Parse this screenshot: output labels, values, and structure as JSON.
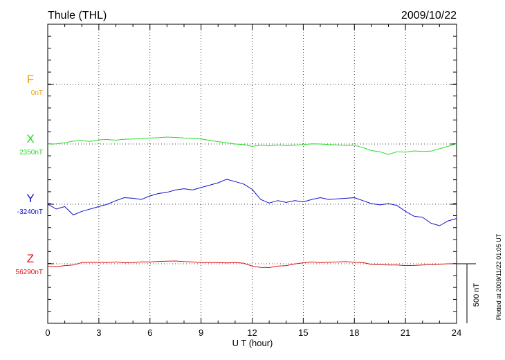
{
  "header": {
    "station": "Thule (THL)",
    "date": "2009/10/22"
  },
  "side_note": "Plotted at 2009/11/22 01:05 UT",
  "scale_bar": {
    "label": "500 nT",
    "value_nT": 500
  },
  "colors": {
    "F": "#f0a000",
    "X": "#22dd22",
    "Y": "#1010cc",
    "Z": "#dd1111",
    "axis": "#000000",
    "grid": "#000000"
  },
  "chart_data": {
    "type": "line",
    "xlabel": "U T (hour)",
    "xlim": [
      0,
      24
    ],
    "x_ticks": [
      "0",
      "3",
      "6",
      "9",
      "12",
      "15",
      "18",
      "21",
      "24"
    ],
    "units": "nT",
    "series": [
      {
        "name": "F",
        "baseline_label": "0nT",
        "baseline_nT": 0,
        "x": [],
        "values": []
      },
      {
        "name": "X",
        "baseline_label": "2350nT",
        "baseline_nT": 2350,
        "x": [
          0,
          0.5,
          1,
          1.5,
          2,
          2.5,
          3,
          3.5,
          4,
          4.5,
          5,
          5.5,
          6,
          6.5,
          7,
          7.5,
          8,
          8.5,
          9,
          9.5,
          10,
          10.5,
          11,
          11.5,
          12,
          12.5,
          13,
          13.5,
          14,
          14.5,
          15,
          15.5,
          16,
          16.5,
          17,
          17.5,
          18,
          18.5,
          19,
          19.5,
          20,
          20.5,
          21,
          21.5,
          22,
          22.5,
          23,
          23.5,
          24
        ],
        "values": [
          2350,
          2352,
          2360,
          2375,
          2378,
          2372,
          2385,
          2388,
          2382,
          2390,
          2392,
          2395,
          2400,
          2403,
          2408,
          2405,
          2400,
          2398,
          2392,
          2380,
          2370,
          2360,
          2350,
          2345,
          2330,
          2340,
          2335,
          2342,
          2336,
          2340,
          2345,
          2352,
          2350,
          2345,
          2342,
          2338,
          2340,
          2320,
          2295,
          2285,
          2262,
          2285,
          2282,
          2292,
          2288,
          2290,
          2310,
          2330,
          2352
        ]
      },
      {
        "name": "Y",
        "baseline_label": "-3240nT",
        "baseline_nT": -3240,
        "x": [
          0,
          0.5,
          1,
          1.5,
          2,
          2.5,
          3,
          3.5,
          4,
          4.5,
          5,
          5.5,
          6,
          6.5,
          7,
          7.5,
          8,
          8.5,
          9,
          9.5,
          10,
          10.5,
          11,
          11.5,
          12,
          12.5,
          13,
          13.5,
          14,
          14.5,
          15,
          15.5,
          16,
          16.5,
          17,
          17.5,
          18,
          18.5,
          19,
          19.5,
          20,
          20.5,
          21,
          21.5,
          22,
          22.5,
          23,
          23.5,
          24
        ],
        "values": [
          -3240,
          -3280,
          -3260,
          -3330,
          -3300,
          -3280,
          -3260,
          -3240,
          -3210,
          -3185,
          -3190,
          -3200,
          -3170,
          -3150,
          -3140,
          -3120,
          -3110,
          -3120,
          -3100,
          -3080,
          -3060,
          -3030,
          -3050,
          -3070,
          -3115,
          -3200,
          -3230,
          -3210,
          -3225,
          -3210,
          -3220,
          -3200,
          -3185,
          -3200,
          -3195,
          -3190,
          -3185,
          -3210,
          -3235,
          -3245,
          -3235,
          -3250,
          -3300,
          -3340,
          -3350,
          -3400,
          -3420,
          -3380,
          -3360
        ]
      },
      {
        "name": "Z",
        "baseline_label": "56290nT",
        "baseline_nT": 56290,
        "x": [
          0,
          0.5,
          1,
          1.5,
          2,
          2.5,
          3,
          3.5,
          4,
          4.5,
          5,
          5.5,
          6,
          6.5,
          7,
          7.5,
          8,
          8.5,
          9,
          9.5,
          10,
          10.5,
          11,
          11.5,
          12,
          12.5,
          13,
          13.5,
          14,
          14.5,
          15,
          15.5,
          16,
          16.5,
          17,
          17.5,
          18,
          18.5,
          19,
          19.5,
          20,
          20.5,
          21,
          21.5,
          22,
          22.5,
          23,
          23.5,
          24
        ],
        "values": [
          56270,
          56265,
          56275,
          56280,
          56300,
          56303,
          56302,
          56300,
          56305,
          56298,
          56300,
          56306,
          56305,
          56310,
          56312,
          56313,
          56308,
          56305,
          56300,
          56300,
          56300,
          56297,
          56300,
          56295,
          56270,
          56260,
          56258,
          56270,
          56275,
          56288,
          56298,
          56305,
          56300,
          56302,
          56305,
          56308,
          56302,
          56300,
          56285,
          56282,
          56280,
          56280,
          56275,
          56276,
          56280,
          56282,
          56286,
          56290,
          56292
        ]
      }
    ]
  }
}
